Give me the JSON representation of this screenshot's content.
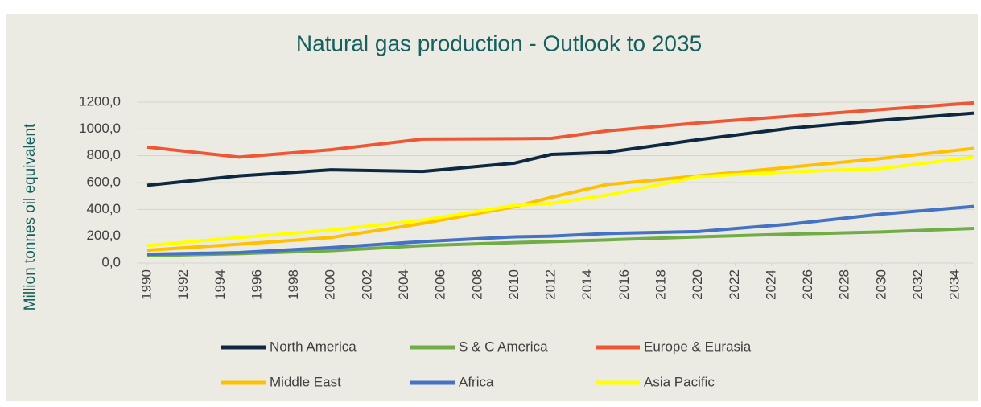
{
  "chart_data": {
    "type": "line",
    "title": "Natural gas production - Outlook to 2035",
    "y_label": "Million tonnes oil equivalent",
    "x": [
      1990,
      1995,
      2000,
      2005,
      2010,
      2012,
      2015,
      2020,
      2025,
      2030,
      2035
    ],
    "xlim": [
      1990,
      2035
    ],
    "xticks": [
      1990,
      1992,
      1994,
      1996,
      1998,
      2000,
      2002,
      2004,
      2006,
      2008,
      2010,
      2012,
      2014,
      2016,
      2018,
      2020,
      2022,
      2024,
      2026,
      2028,
      2030,
      2032,
      2034
    ],
    "ylim": [
      0,
      1200
    ],
    "yticks": [
      {
        "value": 0,
        "label": "0,0"
      },
      {
        "value": 200,
        "label": "200,0"
      },
      {
        "value": 400,
        "label": "400,0"
      },
      {
        "value": 600,
        "label": "600,0"
      },
      {
        "value": 800,
        "label": "800,0"
      },
      {
        "value": 1000,
        "label": "1000,0"
      },
      {
        "value": 1200,
        "label": "1200,0"
      }
    ],
    "grid": true,
    "legend": "bottom",
    "series": [
      {
        "name": "North America",
        "color": "#0e2841",
        "values": [
          580,
          650,
          695,
          683,
          745,
          810,
          825,
          920,
          1005,
          1065,
          1118
        ]
      },
      {
        "name": "S & C America",
        "color": "#70ad47",
        "values": [
          55,
          70,
          92,
          130,
          152,
          160,
          172,
          195,
          215,
          232,
          258
        ]
      },
      {
        "name": "Europe & Eurasia",
        "color": "#ee5634",
        "values": [
          865,
          790,
          845,
          925,
          928,
          930,
          985,
          1045,
          1095,
          1145,
          1195
        ]
      },
      {
        "name": "Middle East",
        "color": "#ffc000",
        "values": [
          95,
          140,
          190,
          295,
          420,
          490,
          585,
          650,
          715,
          780,
          855
        ]
      },
      {
        "name": "Africa",
        "color": "#4472c4",
        "values": [
          65,
          78,
          115,
          160,
          195,
          200,
          220,
          235,
          290,
          365,
          422
        ]
      },
      {
        "name": "Asia Pacific",
        "color": "#ffff00",
        "values": [
          130,
          190,
          245,
          320,
          430,
          445,
          505,
          645,
          680,
          705,
          790
        ]
      }
    ]
  }
}
